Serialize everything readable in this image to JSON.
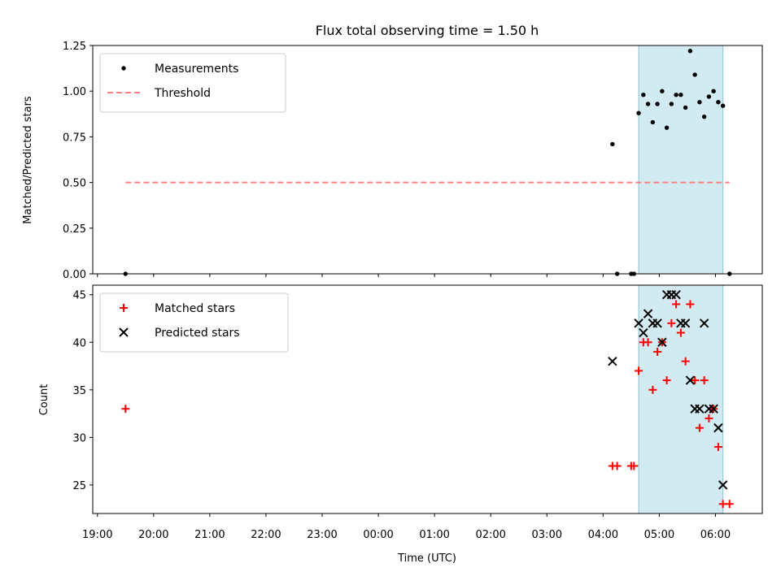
{
  "chart_data": [
    {
      "type": "scatter",
      "title": "Flux total observing time = 1.50 h",
      "xlabel": "",
      "ylabel": "Matched/Predicted stars",
      "x_unit": "hours UTC (wrapping past midnight)",
      "xlim": [
        "18:55",
        "06:50"
      ],
      "ylim": [
        0,
        1.25
      ],
      "yticks": [
        "0.00",
        "0.25",
        "0.50",
        "0.75",
        "1.00",
        "1.25"
      ],
      "shaded_span": [
        "04:38",
        "06:08"
      ],
      "shade_color": "#add8e6",
      "legend_position": "upper-left",
      "threshold": {
        "name": "Threshold",
        "value": 0.5,
        "x_range": [
          "19:30",
          "06:15"
        ],
        "color": "#ff7f7f",
        "style": "dashed"
      },
      "series": [
        {
          "name": "Measurements",
          "color": "#000000",
          "points": [
            [
              "19:30",
              0.0
            ],
            [
              "04:10",
              0.71
            ],
            [
              "04:15",
              0.0
            ],
            [
              "04:30",
              0.0
            ],
            [
              "04:33",
              0.0
            ],
            [
              "04:38",
              0.88
            ],
            [
              "04:43",
              0.98
            ],
            [
              "04:48",
              0.93
            ],
            [
              "04:53",
              0.83
            ],
            [
              "04:58",
              0.93
            ],
            [
              "05:03",
              1.0
            ],
            [
              "05:08",
              0.8
            ],
            [
              "05:13",
              0.93
            ],
            [
              "05:18",
              0.98
            ],
            [
              "05:23",
              0.98
            ],
            [
              "05:28",
              0.91
            ],
            [
              "05:33",
              1.22
            ],
            [
              "05:38",
              1.09
            ],
            [
              "05:43",
              0.94
            ],
            [
              "05:48",
              0.86
            ],
            [
              "05:53",
              0.97
            ],
            [
              "05:58",
              1.0
            ],
            [
              "06:03",
              0.94
            ],
            [
              "06:08",
              0.92
            ],
            [
              "06:15",
              0.0
            ]
          ]
        }
      ]
    },
    {
      "type": "scatter",
      "title": "",
      "xlabel": "Time (UTC)",
      "ylabel": "Count",
      "xlim": [
        "18:55",
        "06:50"
      ],
      "xticks": [
        "19:00",
        "20:00",
        "21:00",
        "22:00",
        "23:00",
        "00:00",
        "01:00",
        "02:00",
        "03:00",
        "04:00",
        "05:00",
        "06:00"
      ],
      "ylim": [
        22,
        46
      ],
      "yticks": [
        "25",
        "30",
        "35",
        "40",
        "45"
      ],
      "shaded_span": [
        "04:38",
        "06:08"
      ],
      "shade_color": "#add8e6",
      "legend_position": "upper-left",
      "series": [
        {
          "name": "Matched stars",
          "color": "#ff0000",
          "marker": "plus",
          "points": [
            [
              "19:30",
              33
            ],
            [
              "04:10",
              27
            ],
            [
              "04:15",
              27
            ],
            [
              "04:30",
              27
            ],
            [
              "04:33",
              27
            ],
            [
              "04:38",
              37
            ],
            [
              "04:43",
              40
            ],
            [
              "04:48",
              40
            ],
            [
              "04:53",
              35
            ],
            [
              "04:58",
              39
            ],
            [
              "05:03",
              40
            ],
            [
              "05:08",
              36
            ],
            [
              "05:13",
              42
            ],
            [
              "05:18",
              44
            ],
            [
              "05:23",
              41
            ],
            [
              "05:28",
              38
            ],
            [
              "05:33",
              44
            ],
            [
              "05:38",
              36
            ],
            [
              "05:43",
              31
            ],
            [
              "05:48",
              36
            ],
            [
              "05:53",
              32
            ],
            [
              "05:58",
              33
            ],
            [
              "06:03",
              29
            ],
            [
              "06:08",
              23
            ],
            [
              "06:15",
              23
            ]
          ]
        },
        {
          "name": "Predicted stars",
          "color": "#000000",
          "marker": "x",
          "points": [
            [
              "04:10",
              38
            ],
            [
              "04:38",
              42
            ],
            [
              "04:43",
              41
            ],
            [
              "04:48",
              43
            ],
            [
              "04:53",
              42
            ],
            [
              "04:58",
              42
            ],
            [
              "05:03",
              40
            ],
            [
              "05:08",
              45
            ],
            [
              "05:13",
              45
            ],
            [
              "05:18",
              45
            ],
            [
              "05:23",
              42
            ],
            [
              "05:28",
              42
            ],
            [
              "05:33",
              36
            ],
            [
              "05:38",
              33
            ],
            [
              "05:43",
              33
            ],
            [
              "05:48",
              42
            ],
            [
              "05:53",
              33
            ],
            [
              "05:58",
              33
            ],
            [
              "06:03",
              31
            ],
            [
              "06:08",
              25
            ]
          ]
        }
      ]
    }
  ]
}
